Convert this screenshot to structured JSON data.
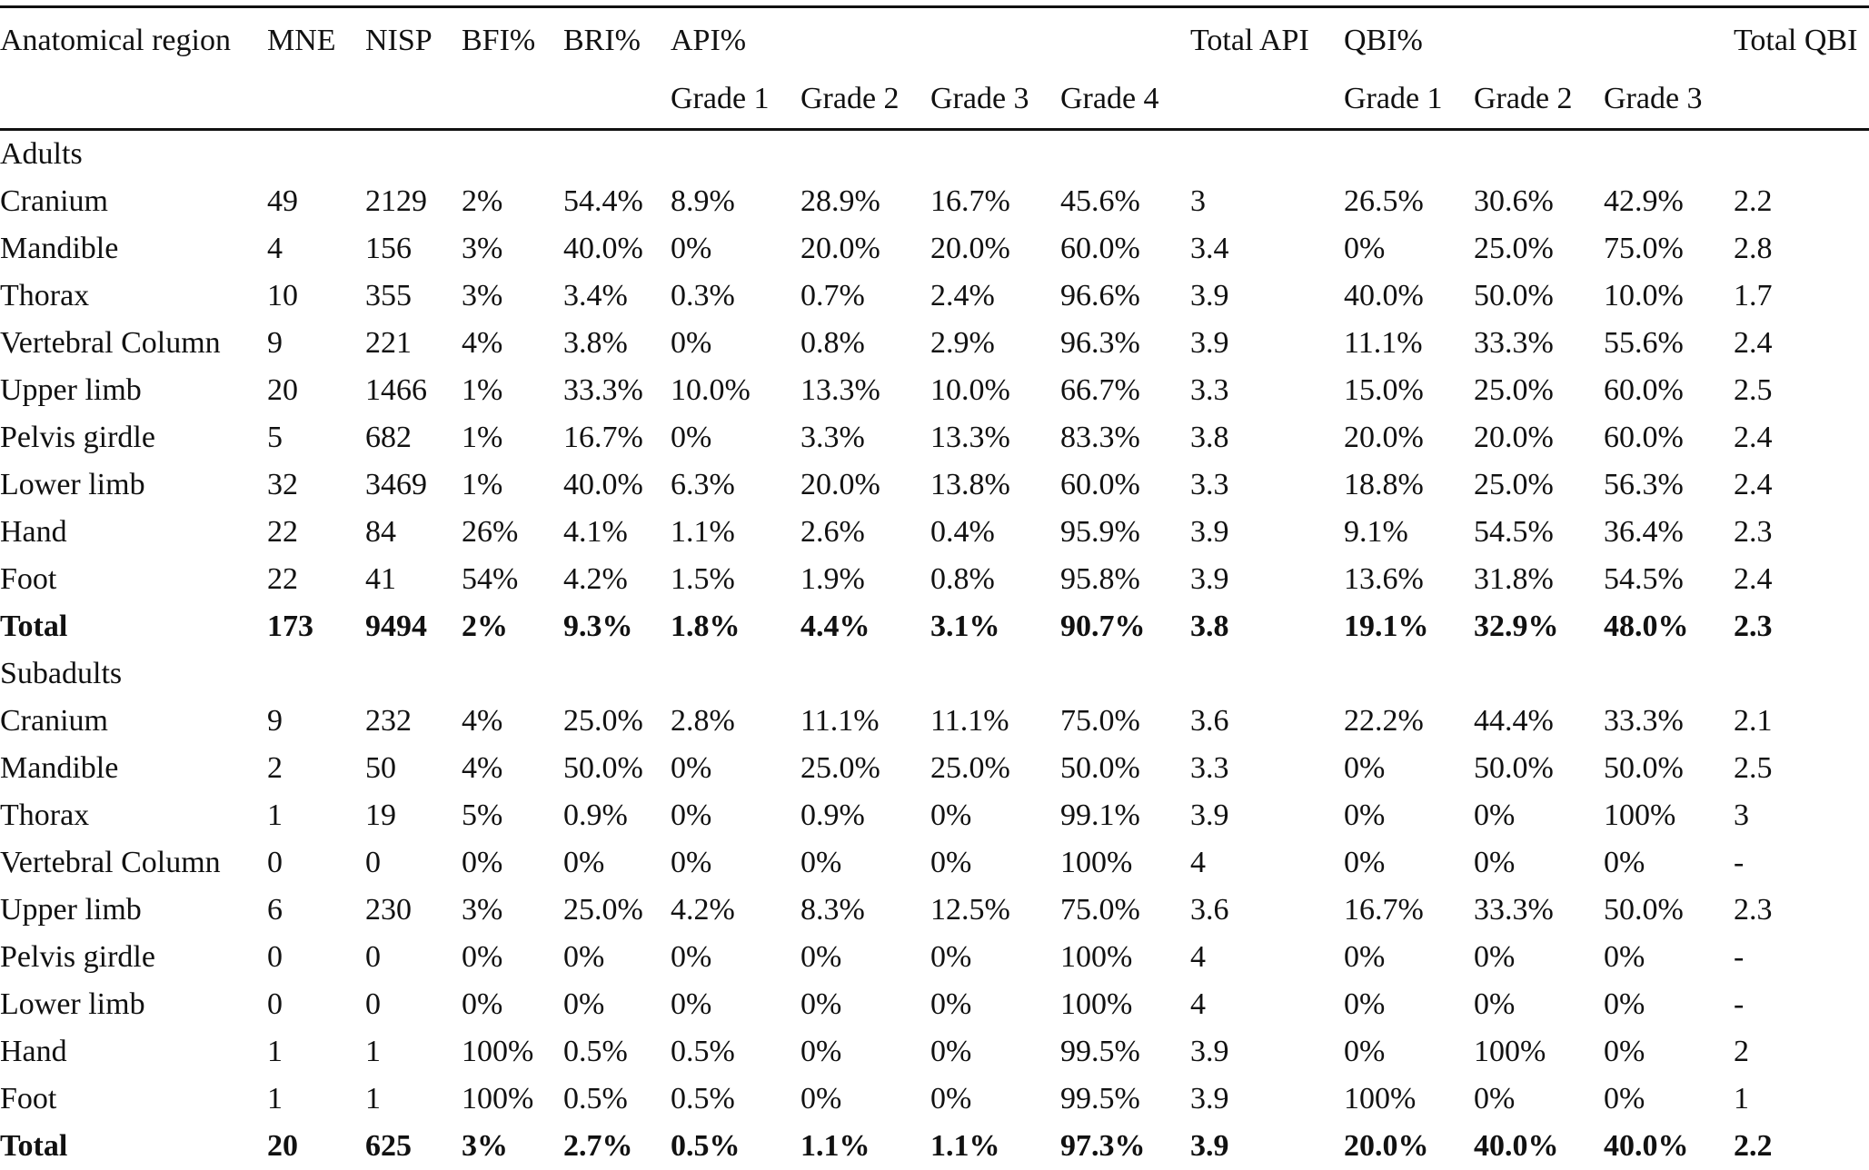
{
  "header": {
    "row1": [
      "Anatomical region",
      "MNE",
      "NISP",
      "BFI%",
      "BRI%",
      "API%",
      "",
      "",
      "",
      "Total API",
      "QBI%",
      "",
      "",
      "Total QBI"
    ],
    "row2": [
      "",
      "",
      "",
      "",
      "",
      "Grade 1",
      "Grade 2",
      "Grade 3",
      "Grade 4",
      "",
      "Grade 1",
      "Grade 2",
      "Grade 3",
      ""
    ]
  },
  "sections": [
    {
      "label": "Adults",
      "rows": [
        [
          "Cranium",
          "49",
          "2129",
          "2%",
          "54.4%",
          "8.9%",
          "28.9%",
          "16.7%",
          "45.6%",
          "3",
          "26.5%",
          "30.6%",
          "42.9%",
          "2.2"
        ],
        [
          "Mandible",
          "4",
          "156",
          "3%",
          "40.0%",
          "0%",
          "20.0%",
          "20.0%",
          "60.0%",
          "3.4",
          "0%",
          "25.0%",
          "75.0%",
          "2.8"
        ],
        [
          "Thorax",
          "10",
          "355",
          "3%",
          "3.4%",
          "0.3%",
          "0.7%",
          "2.4%",
          "96.6%",
          "3.9",
          "40.0%",
          "50.0%",
          "10.0%",
          "1.7"
        ],
        [
          "Vertebral Column",
          "9",
          "221",
          "4%",
          "3.8%",
          "0%",
          "0.8%",
          "2.9%",
          "96.3%",
          "3.9",
          "11.1%",
          "33.3%",
          "55.6%",
          "2.4"
        ],
        [
          "Upper limb",
          "20",
          "1466",
          "1%",
          "33.3%",
          "10.0%",
          "13.3%",
          "10.0%",
          "66.7%",
          "3.3",
          "15.0%",
          "25.0%",
          "60.0%",
          "2.5"
        ],
        [
          "Pelvis girdle",
          "5",
          "682",
          "1%",
          "16.7%",
          "0%",
          "3.3%",
          "13.3%",
          "83.3%",
          "3.8",
          "20.0%",
          "20.0%",
          "60.0%",
          "2.4"
        ],
        [
          "Lower limb",
          "32",
          "3469",
          "1%",
          "40.0%",
          "6.3%",
          "20.0%",
          "13.8%",
          "60.0%",
          "3.3",
          "18.8%",
          "25.0%",
          "56.3%",
          "2.4"
        ],
        [
          "Hand",
          "22",
          "84",
          "26%",
          "4.1%",
          "1.1%",
          "2.6%",
          "0.4%",
          "95.9%",
          "3.9",
          "9.1%",
          "54.5%",
          "36.4%",
          "2.3"
        ],
        [
          "Foot",
          "22",
          "41",
          "54%",
          "4.2%",
          "1.5%",
          "1.9%",
          "0.8%",
          "95.8%",
          "3.9",
          "13.6%",
          "31.8%",
          "54.5%",
          "2.4"
        ]
      ],
      "total": [
        "Total",
        "173",
        "9494",
        "2%",
        "9.3%",
        "1.8%",
        "4.4%",
        "3.1%",
        "90.7%",
        "3.8",
        "19.1%",
        "32.9%",
        "48.0%",
        "2.3"
      ]
    },
    {
      "label": "Subadults",
      "rows": [
        [
          "Cranium",
          "9",
          "232",
          "4%",
          "25.0%",
          "2.8%",
          "11.1%",
          "11.1%",
          "75.0%",
          "3.6",
          "22.2%",
          "44.4%",
          "33.3%",
          "2.1"
        ],
        [
          "Mandible",
          "2",
          "50",
          "4%",
          "50.0%",
          "0%",
          "25.0%",
          "25.0%",
          "50.0%",
          "3.3",
          "0%",
          "50.0%",
          "50.0%",
          "2.5"
        ],
        [
          "Thorax",
          "1",
          "19",
          "5%",
          "0.9%",
          "0%",
          "0.9%",
          "0%",
          "99.1%",
          "3.9",
          "0%",
          "0%",
          "100%",
          "3"
        ],
        [
          "Vertebral Column",
          "0",
          "0",
          "0%",
          "0%",
          "0%",
          "0%",
          "0%",
          "100%",
          "4",
          "0%",
          "0%",
          "0%",
          "-"
        ],
        [
          "Upper limb",
          "6",
          "230",
          "3%",
          "25.0%",
          "4.2%",
          "8.3%",
          "12.5%",
          "75.0%",
          "3.6",
          "16.7%",
          "33.3%",
          "50.0%",
          "2.3"
        ],
        [
          "Pelvis girdle",
          "0",
          "0",
          "0%",
          "0%",
          "0%",
          "0%",
          "0%",
          "100%",
          "4",
          "0%",
          "0%",
          "0%",
          "-"
        ],
        [
          "Lower limb",
          "0",
          "0",
          "0%",
          "0%",
          "0%",
          "0%",
          "0%",
          "100%",
          "4",
          "0%",
          "0%",
          "0%",
          "-"
        ],
        [
          "Hand",
          "1",
          "1",
          "100%",
          "0.5%",
          "0.5%",
          "0%",
          "0%",
          "99.5%",
          "3.9",
          "0%",
          "100%",
          "0%",
          "2"
        ],
        [
          "Foot",
          "1",
          "1",
          "100%",
          "0.5%",
          "0.5%",
          "0%",
          "0%",
          "99.5%",
          "3.9",
          "100%",
          "0%",
          "0%",
          "1"
        ]
      ],
      "total": [
        "Total",
        "20",
        "625",
        "3%",
        "2.7%",
        "0.5%",
        "1.1%",
        "1.1%",
        "97.3%",
        "3.9",
        "20.0%",
        "40.0%",
        "40.0%",
        "2.2"
      ]
    }
  ]
}
